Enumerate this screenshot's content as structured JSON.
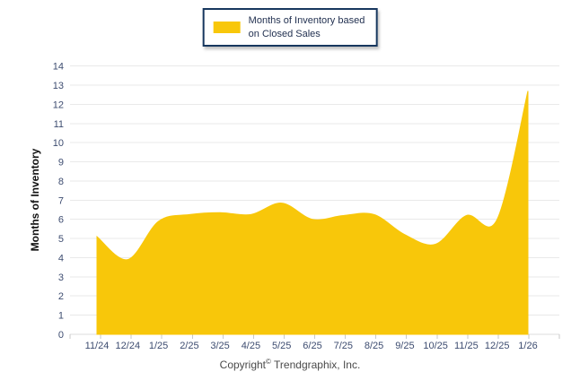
{
  "legend": {
    "label_line1": "Months of Inventory based",
    "label_line2": "on Closed Sales"
  },
  "footer": {
    "copyright_pre": "Copyright",
    "copyright_symbol": "©",
    "copyright_post": "Trendgraphix, Inc."
  },
  "chart_data": {
    "type": "area",
    "title": "",
    "legend": [
      "Months of Inventory based on Closed Sales"
    ],
    "legend_position": "top-center",
    "xlabel": "",
    "ylabel": "Months of Inventory",
    "categories": [
      "11/24",
      "12/24",
      "1/25",
      "2/25",
      "3/25",
      "4/25",
      "5/25",
      "6/25",
      "7/25",
      "8/25",
      "9/25",
      "10/25",
      "11/25",
      "12/25",
      "1/26"
    ],
    "values": [
      5.1,
      3.9,
      5.9,
      6.25,
      6.35,
      6.25,
      6.85,
      6.0,
      6.2,
      6.25,
      5.2,
      4.7,
      6.2,
      6.0,
      12.7
    ],
    "ylim": [
      0,
      14
    ],
    "ytick_interval": 1,
    "grid": "horizontal",
    "colors": {
      "fill": "#F8C70A",
      "gridline": "#E9E9E9",
      "tick_label": "#3D4C70",
      "axis_tick": "#C9C9C9",
      "legend_border": "#17375E"
    }
  }
}
